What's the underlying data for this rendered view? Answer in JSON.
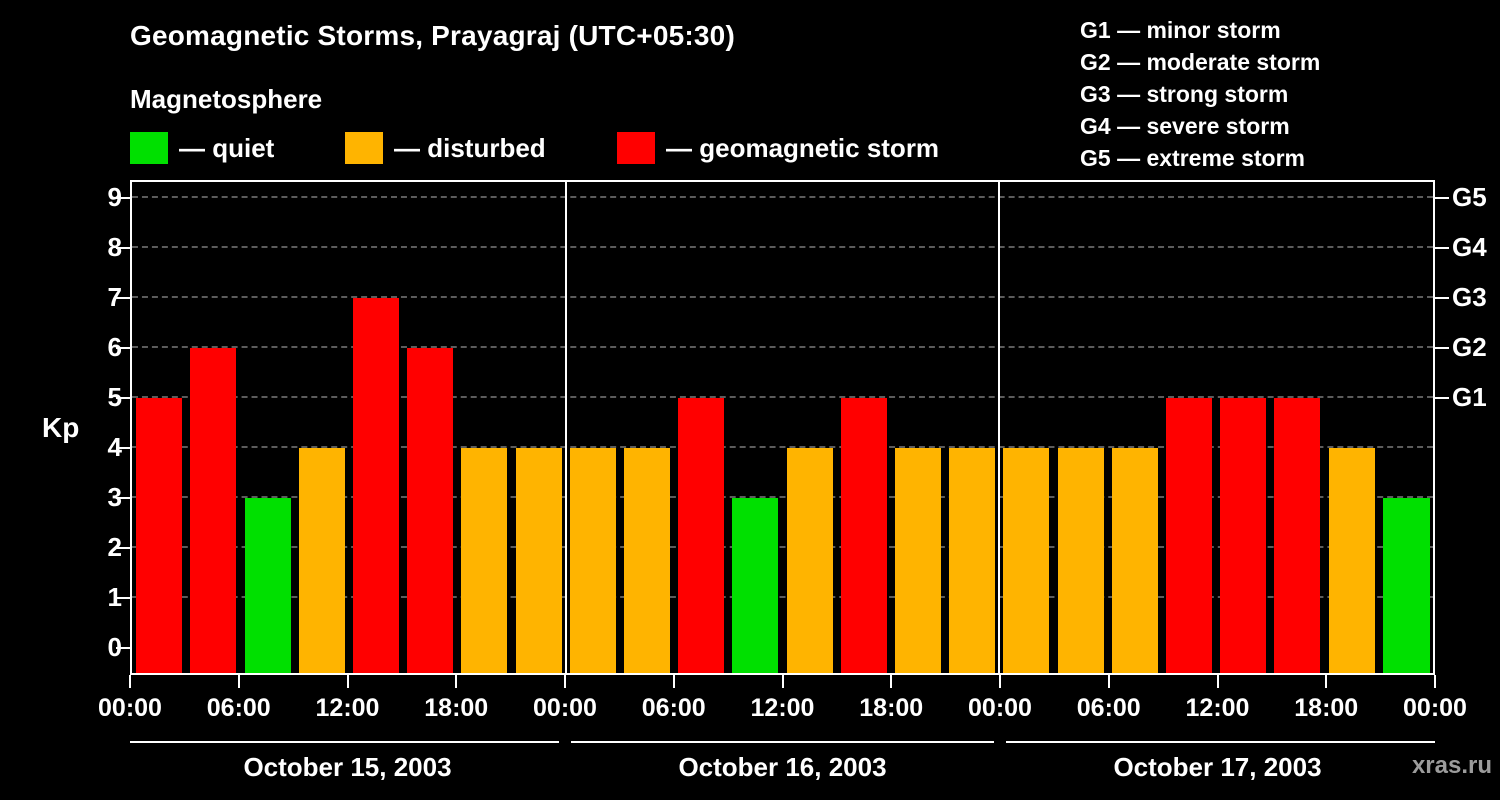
{
  "title": "Geomagnetic Storms, Prayagraj (UTC+05:30)",
  "subtitle": "Magnetosphere",
  "watermark": "xras.ru",
  "colors": {
    "quiet": "#00e000",
    "disturbed": "#ffb400",
    "storm": "#ff0000",
    "background": "#000000",
    "text": "#ffffff",
    "grid": "#5c5c5c",
    "axis": "#ffffff",
    "watermark": "#9c9c9c"
  },
  "legend": [
    {
      "key": "quiet",
      "label": "— quiet"
    },
    {
      "key": "disturbed",
      "label": "— disturbed"
    },
    {
      "key": "storm",
      "label": "— geomagnetic storm"
    }
  ],
  "g_scale_legend": [
    "G1 — minor storm",
    "G2 — moderate storm",
    "G3 — strong storm",
    "G4 — severe storm",
    "G5 — extreme storm"
  ],
  "chart_data": {
    "type": "bar",
    "title": "Geomagnetic Storms, Prayagraj (UTC+05:30)",
    "ylabel": "Kp",
    "ylim": [
      0,
      9
    ],
    "yticks": [
      0,
      1,
      2,
      3,
      4,
      5,
      6,
      7,
      8,
      9
    ],
    "x_tick_labels": [
      "00:00",
      "06:00",
      "12:00",
      "18:00",
      "00:00",
      "06:00",
      "12:00",
      "18:00",
      "00:00",
      "06:00",
      "12:00",
      "18:00",
      "00:00"
    ],
    "right_axis": [
      {
        "label": "G1",
        "kp": 5
      },
      {
        "label": "G2",
        "kp": 6
      },
      {
        "label": "G3",
        "kp": 7
      },
      {
        "label": "G4",
        "kp": 8
      },
      {
        "label": "G5",
        "kp": 9
      }
    ],
    "bar_interval_hours": 3,
    "color_rule": {
      "quiet_max_kp": 3,
      "disturbed_kp": 4,
      "storm_min_kp": 5
    },
    "grid": "dashed horizontal lines at integer Kp levels",
    "legend_position": "top",
    "days": [
      {
        "date": "October 15, 2003",
        "kp_values": [
          5,
          6,
          3,
          4,
          7,
          6,
          4,
          4
        ]
      },
      {
        "date": "October 16, 2003",
        "kp_values": [
          4,
          4,
          5,
          3,
          4,
          5,
          4,
          4
        ]
      },
      {
        "date": "October 17, 2003",
        "kp_values": [
          4,
          4,
          4,
          5,
          5,
          5,
          4,
          3
        ]
      }
    ],
    "trailing_partial_bar": {
      "kp": 3
    }
  }
}
